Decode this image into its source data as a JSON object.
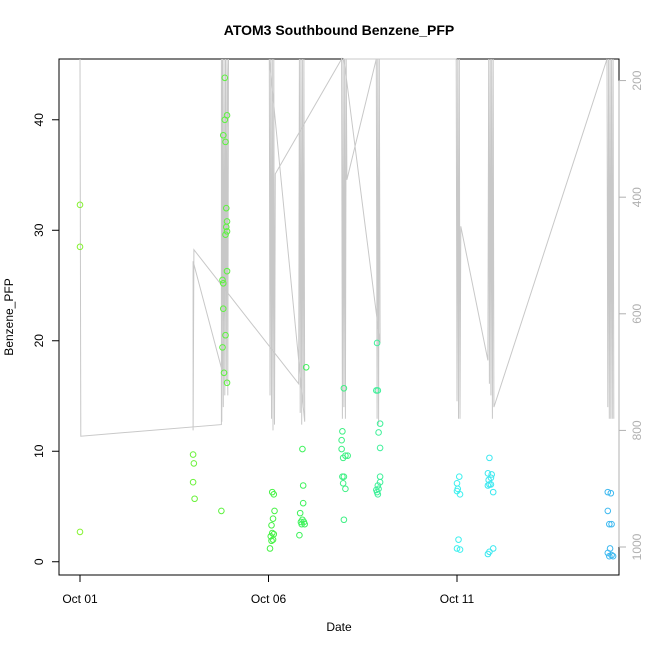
{
  "chart_data": {
    "type": "scatter",
    "title": "ATOM3 Southbound Benzene_PFP",
    "xlabel": "Date",
    "ylabel": "Benzene_PFP",
    "x_range": [
      0.0,
      15.5
    ],
    "ylim": [
      -1.2,
      45.5
    ],
    "right_axis_range": [
      163,
      1048
    ],
    "x_ticks": [
      {
        "x": 0,
        "label": "Oct 01"
      },
      {
        "x": 5,
        "label": "Oct 06"
      },
      {
        "x": 10,
        "label": "Oct 11"
      }
    ],
    "y_ticks": [
      0,
      10,
      20,
      30,
      40
    ],
    "right_ticks": [
      200,
      400,
      600,
      800,
      1000
    ],
    "grid": false,
    "series": [
      {
        "values_desc": "x = days since Oct 01, y = Benzene_PFP",
        "points": [
          [
            0.0,
            32.3,
            "#84f22e"
          ],
          [
            0.0,
            28.5,
            "#84f22e"
          ],
          [
            0.0,
            2.7,
            "#84f22e"
          ],
          [
            3.0,
            9.7,
            "#6af23a"
          ],
          [
            3.02,
            8.9,
            "#6af23a"
          ],
          [
            3.0,
            7.2,
            "#6af23a"
          ],
          [
            3.04,
            5.7,
            "#6af23a"
          ],
          [
            3.75,
            4.6,
            "#5cf23e"
          ],
          [
            3.78,
            19.4,
            "#5cf23e"
          ],
          [
            3.8,
            22.9,
            "#5cf23e"
          ],
          [
            3.78,
            25.5,
            "#5cf23e"
          ],
          [
            3.8,
            25.2,
            "#5cf23e"
          ],
          [
            3.82,
            17.1,
            "#5cf23e"
          ],
          [
            3.9,
            16.2,
            "#5cf23e"
          ],
          [
            3.86,
            20.5,
            "#5cf23e"
          ],
          [
            3.9,
            26.3,
            "#5cf23e"
          ],
          [
            3.86,
            29.6,
            "#5cf23e"
          ],
          [
            3.9,
            29.9,
            "#5cf23e"
          ],
          [
            3.88,
            30.3,
            "#5cf23e"
          ],
          [
            3.9,
            30.8,
            "#5cf23e"
          ],
          [
            3.88,
            32.0,
            "#5cf23e"
          ],
          [
            3.86,
            38.0,
            "#5cf23e"
          ],
          [
            3.8,
            38.6,
            "#5cf23e"
          ],
          [
            3.84,
            40.0,
            "#5cf23e"
          ],
          [
            3.9,
            40.4,
            "#5cf23e"
          ],
          [
            3.84,
            43.8,
            "#5cf23e"
          ],
          [
            5.1,
            6.3,
            "#45f244"
          ],
          [
            5.14,
            6.1,
            "#45f244"
          ],
          [
            5.16,
            4.6,
            "#45f244"
          ],
          [
            5.12,
            3.9,
            "#45f244"
          ],
          [
            5.08,
            3.3,
            "#45f244"
          ],
          [
            5.1,
            2.6,
            "#45f244"
          ],
          [
            5.14,
            2.5,
            "#45f244"
          ],
          [
            5.06,
            2.3,
            "#45f244"
          ],
          [
            5.12,
            2.0,
            "#45f244"
          ],
          [
            5.08,
            1.9,
            "#45f244"
          ],
          [
            5.04,
            1.2,
            "#45f244"
          ],
          [
            6.0,
            17.6,
            "#3ff25c"
          ],
          [
            5.9,
            10.2,
            "#3ff25c"
          ],
          [
            5.92,
            6.9,
            "#3ff25c"
          ],
          [
            5.92,
            5.3,
            "#3ff25c"
          ],
          [
            5.84,
            4.4,
            "#3ff25c"
          ],
          [
            5.9,
            3.8,
            "#3ff25c"
          ],
          [
            5.86,
            3.6,
            "#3ff25c"
          ],
          [
            5.94,
            3.6,
            "#3ff25c"
          ],
          [
            5.88,
            3.4,
            "#3ff25c"
          ],
          [
            5.96,
            3.4,
            "#3ff25c"
          ],
          [
            5.82,
            2.4,
            "#3ff25c"
          ],
          [
            7.0,
            15.7,
            "#3ff084"
          ],
          [
            6.96,
            11.8,
            "#3ff084"
          ],
          [
            6.94,
            11.0,
            "#3ff084"
          ],
          [
            6.94,
            10.2,
            "#3ff084"
          ],
          [
            7.04,
            9.6,
            "#3ff084"
          ],
          [
            7.1,
            9.6,
            "#3ff084"
          ],
          [
            6.98,
            9.4,
            "#3ff084"
          ],
          [
            6.96,
            7.7,
            "#3ff084"
          ],
          [
            7.0,
            7.7,
            "#3ff084"
          ],
          [
            6.98,
            7.1,
            "#3ff084"
          ],
          [
            7.04,
            6.6,
            "#3ff084"
          ],
          [
            7.0,
            3.8,
            "#3ff084"
          ],
          [
            7.88,
            19.8,
            "#3ff09a"
          ],
          [
            7.86,
            15.5,
            "#3ff09a"
          ],
          [
            7.9,
            15.5,
            "#3ff09a"
          ],
          [
            7.96,
            12.5,
            "#3ff09a"
          ],
          [
            7.92,
            11.7,
            "#3ff09a"
          ],
          [
            7.96,
            10.3,
            "#3ff09a"
          ],
          [
            7.96,
            7.7,
            "#3ff09a"
          ],
          [
            7.96,
            7.2,
            "#3ff09a"
          ],
          [
            7.9,
            6.9,
            "#3ff09a"
          ],
          [
            7.92,
            6.6,
            "#3ff09a"
          ],
          [
            7.86,
            6.5,
            "#3ff09a"
          ],
          [
            7.88,
            6.3,
            "#3ff09a"
          ],
          [
            7.9,
            6.1,
            "#3ff09a"
          ],
          [
            10.06,
            7.7,
            "#3ef0ef"
          ],
          [
            10.0,
            7.1,
            "#3ef0ef"
          ],
          [
            10.02,
            6.6,
            "#3ef0ef"
          ],
          [
            10.0,
            6.4,
            "#3ef0ef"
          ],
          [
            10.08,
            6.1,
            "#3ef0ef"
          ],
          [
            10.04,
            2.0,
            "#3ef0ef"
          ],
          [
            10.0,
            1.2,
            "#3ef0ef"
          ],
          [
            10.08,
            1.1,
            "#3ef0ef"
          ],
          [
            10.86,
            9.4,
            "#3ee8f0"
          ],
          [
            10.82,
            8.0,
            "#3ee8f0"
          ],
          [
            10.92,
            7.9,
            "#3ee8f0"
          ],
          [
            10.9,
            7.6,
            "#3ee8f0"
          ],
          [
            10.84,
            7.4,
            "#3ee8f0"
          ],
          [
            10.86,
            7.0,
            "#3ee8f0"
          ],
          [
            10.9,
            7.0,
            "#3ee8f0"
          ],
          [
            10.82,
            6.9,
            "#3ee8f0"
          ],
          [
            10.96,
            6.3,
            "#3ee8f0"
          ],
          [
            10.96,
            1.2,
            "#3ee8f0"
          ],
          [
            10.86,
            0.9,
            "#3ee8f0"
          ],
          [
            10.82,
            0.7,
            "#3ee8f0"
          ],
          [
            14.0,
            6.3,
            "#3eb9f0"
          ],
          [
            14.08,
            6.2,
            "#3eb9f0"
          ],
          [
            14.0,
            4.6,
            "#3eb9f0"
          ],
          [
            14.04,
            3.4,
            "#3eb9f0"
          ],
          [
            14.1,
            3.4,
            "#3eb9f0"
          ],
          [
            14.06,
            1.2,
            "#3eb9f0"
          ],
          [
            14.0,
            0.8,
            "#3eb9f0"
          ],
          [
            14.1,
            0.6,
            "#3eb9f0"
          ],
          [
            14.04,
            0.5,
            "#3eb9f0"
          ],
          [
            14.14,
            0.5,
            "#3eb9f0"
          ]
        ]
      },
      {
        "values_desc": "grey line, right axis",
        "color": "#c8c8c8",
        "points": [
          [
            0.0,
            160
          ],
          [
            0.02,
            810
          ],
          [
            3.75,
            790
          ],
          [
            3.75,
            160
          ],
          [
            3.76,
            785
          ],
          [
            3.78,
            160
          ],
          [
            3.8,
            760
          ],
          [
            3.82,
            160
          ],
          [
            3.84,
            740
          ],
          [
            3.86,
            160
          ],
          [
            3.88,
            720
          ],
          [
            3.9,
            160
          ],
          [
            3.92,
            740
          ],
          [
            3.94,
            160
          ],
          [
            3.78,
            700
          ],
          [
            3.0,
            510
          ],
          [
            3.0,
            800
          ],
          [
            3.02,
            490
          ],
          [
            5.8,
            720
          ],
          [
            5.82,
            160
          ],
          [
            5.84,
            770
          ],
          [
            5.86,
            160
          ],
          [
            5.88,
            790
          ],
          [
            5.9,
            160
          ],
          [
            5.92,
            760
          ],
          [
            5.94,
            160
          ],
          [
            5.96,
            785
          ],
          [
            5.02,
            160
          ],
          [
            5.04,
            740
          ],
          [
            5.06,
            160
          ],
          [
            5.08,
            780
          ],
          [
            5.1,
            160
          ],
          [
            5.12,
            800
          ],
          [
            5.14,
            160
          ],
          [
            5.16,
            790
          ],
          [
            5.18,
            360
          ],
          [
            6.94,
            160
          ],
          [
            6.96,
            780
          ],
          [
            6.98,
            160
          ],
          [
            7.0,
            760
          ],
          [
            7.02,
            160
          ],
          [
            7.04,
            780
          ],
          [
            7.06,
            160
          ],
          [
            7.08,
            370
          ],
          [
            7.86,
            160
          ],
          [
            7.88,
            780
          ],
          [
            7.9,
            160
          ],
          [
            7.92,
            790
          ],
          [
            7.94,
            160
          ],
          [
            7.96,
            650
          ],
          [
            7.0,
            160
          ],
          [
            9.98,
            160
          ],
          [
            10.0,
            750
          ],
          [
            10.02,
            160
          ],
          [
            10.04,
            780
          ],
          [
            10.06,
            160
          ],
          [
            10.08,
            780
          ],
          [
            10.1,
            450
          ],
          [
            10.82,
            680
          ],
          [
            10.84,
            160
          ],
          [
            10.86,
            720
          ],
          [
            10.88,
            160
          ],
          [
            10.9,
            740
          ],
          [
            10.92,
            160
          ],
          [
            10.94,
            780
          ],
          [
            10.96,
            160
          ],
          [
            10.98,
            760
          ],
          [
            13.98,
            160
          ],
          [
            14.0,
            760
          ],
          [
            14.02,
            160
          ],
          [
            14.04,
            780
          ],
          [
            14.06,
            160
          ],
          [
            14.08,
            780
          ],
          [
            14.1,
            160
          ],
          [
            14.12,
            780
          ],
          [
            14.14,
            160
          ],
          [
            14.16,
            780
          ]
        ]
      }
    ]
  }
}
